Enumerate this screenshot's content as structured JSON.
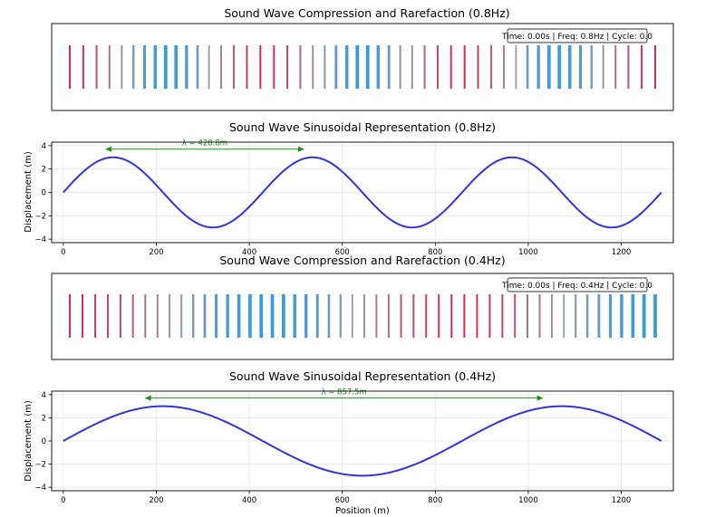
{
  "chart_data": [
    {
      "type": "other",
      "title": "Sound Wave Compression and Rarefaction (0.8Hz)",
      "info_box": "Time: 0.00s | Freq: 0.8Hz | Cycle: 0.0",
      "frequency_hz": 0.8,
      "wavelength_m": 428.8,
      "x_range": [
        0,
        1286.25
      ],
      "particle_count": 50
    },
    {
      "type": "line",
      "title": "Sound Wave Sinusoidal Representation (0.8Hz)",
      "xlabel": "",
      "ylabel": "Displacement (m)",
      "xlim": [
        -25,
        1312
      ],
      "ylim": [
        -4.3,
        4.3
      ],
      "xticks": [
        0,
        200,
        400,
        600,
        800,
        1000,
        1200
      ],
      "yticks": [
        -4,
        -2,
        0,
        2,
        4
      ],
      "grid": true,
      "color": "#3333dd",
      "series": [
        {
          "function": "sine",
          "amplitude": 3,
          "wavelength": 428.8,
          "x_start": 0,
          "x_end": 1286.25
        }
      ],
      "annotation": {
        "text": "λ = 428.8m",
        "x_start": 90,
        "x_end": 518.8,
        "y": 3.7,
        "color": "#228B22"
      }
    },
    {
      "type": "other",
      "title": "Sound Wave Compression and Rarefaction (0.4Hz)",
      "info_box": "Time: 0.00s | Freq: 0.4Hz | Cycle: 0.0",
      "frequency_hz": 0.4,
      "wavelength_m": 857.5,
      "x_range": [
        0,
        1286.25
      ],
      "particle_count": 50
    },
    {
      "type": "line",
      "title": "Sound Wave Sinusoidal Representation (0.4Hz)",
      "xlabel": "Position (m)",
      "ylabel": "Displacement (m)",
      "xlim": [
        -25,
        1312
      ],
      "ylim": [
        -4.3,
        4.3
      ],
      "xticks": [
        0,
        200,
        400,
        600,
        800,
        1000,
        1200
      ],
      "yticks": [
        -4,
        -2,
        0,
        2,
        4
      ],
      "grid": true,
      "color": "#3333dd",
      "series": [
        {
          "function": "sine",
          "amplitude": 3,
          "wavelength": 857.5,
          "x_start": 0,
          "x_end": 1286.25
        }
      ],
      "annotation": {
        "text": "λ = 857.5m",
        "x_start": 175,
        "x_end": 1032.5,
        "y": 3.7,
        "color": "#228B22"
      }
    }
  ],
  "colors": {
    "compression": "#c8324e",
    "rarefaction": "#3a9be0",
    "neutral": "#7a7a80"
  }
}
